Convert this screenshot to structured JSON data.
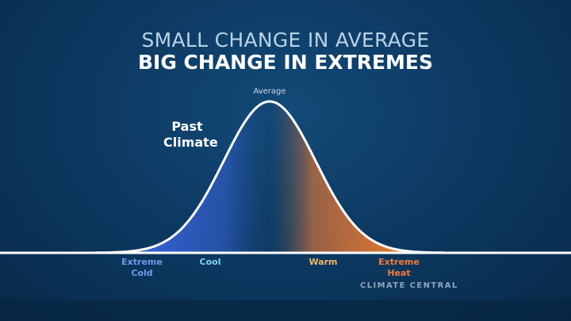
{
  "chart_data": {
    "type": "area",
    "title": "SMALL CHANGE IN AVERAGE",
    "subtitle": "BIG CHANGE IN EXTREMES",
    "distribution": "normal",
    "series": [
      {
        "name": "Past Climate"
      }
    ],
    "peak_label": "Average",
    "categories": [
      "Extreme Cold",
      "Cool",
      "Warm",
      "Extreme Heat"
    ],
    "category_colors": [
      "#6f9cf0",
      "#7fd6f0",
      "#f0b46a",
      "#f07a3a"
    ],
    "gradient_colors": {
      "cold": "#3a66e0",
      "middle": "#123d66",
      "hot": "#f07a30"
    },
    "grid": false
  },
  "brand": "CLIMATE CENTRAL"
}
